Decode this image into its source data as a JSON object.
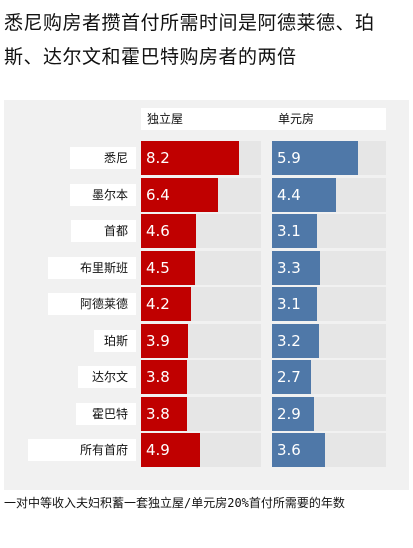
{
  "title": "悉尼购房者攒首付所需时间是阿德莱德、珀斯、达尔文和霍巴特购房者的两倍",
  "note": "一对中等收入夫妇积蓄一套独立屋/单元房20%首付所需要的年数",
  "colors": {
    "house": "#c00000",
    "unit": "#4f78a8",
    "track": "#e6e6e6",
    "plot_bg": "#f1f1f1"
  },
  "chart_data": {
    "type": "bar",
    "title": "悉尼购房者攒首付所需时间是阿德莱德、珀斯、达尔文和霍巴特购房者的两倍",
    "xlabel": "",
    "ylabel": "",
    "xlim": [
      0,
      10
    ],
    "categories": [
      "悉尼",
      "墨尔本",
      "首都",
      "布里斯班",
      "阿德莱德",
      "珀斯",
      "达尔文",
      "霍巴特",
      "所有首府"
    ],
    "series": [
      {
        "name": "独立屋",
        "values": [
          8.2,
          6.4,
          4.6,
          4.5,
          4.2,
          3.9,
          3.8,
          3.8,
          4.9
        ],
        "labels": [
          "8.2",
          "6.4",
          "4.6",
          "4.5",
          "4.2",
          "3.9",
          "3.8",
          "3.8",
          "4.9"
        ]
      },
      {
        "name": "单元房",
        "values": [
          5.9,
          4.4,
          3.1,
          3.3,
          3.1,
          3.2,
          2.7,
          2.9,
          3.6
        ],
        "labels": [
          "5.9",
          "4.4",
          "3.1",
          "3.3",
          "3.1",
          "3.2",
          "2.7",
          "2.9",
          "3.6"
        ]
      }
    ]
  }
}
